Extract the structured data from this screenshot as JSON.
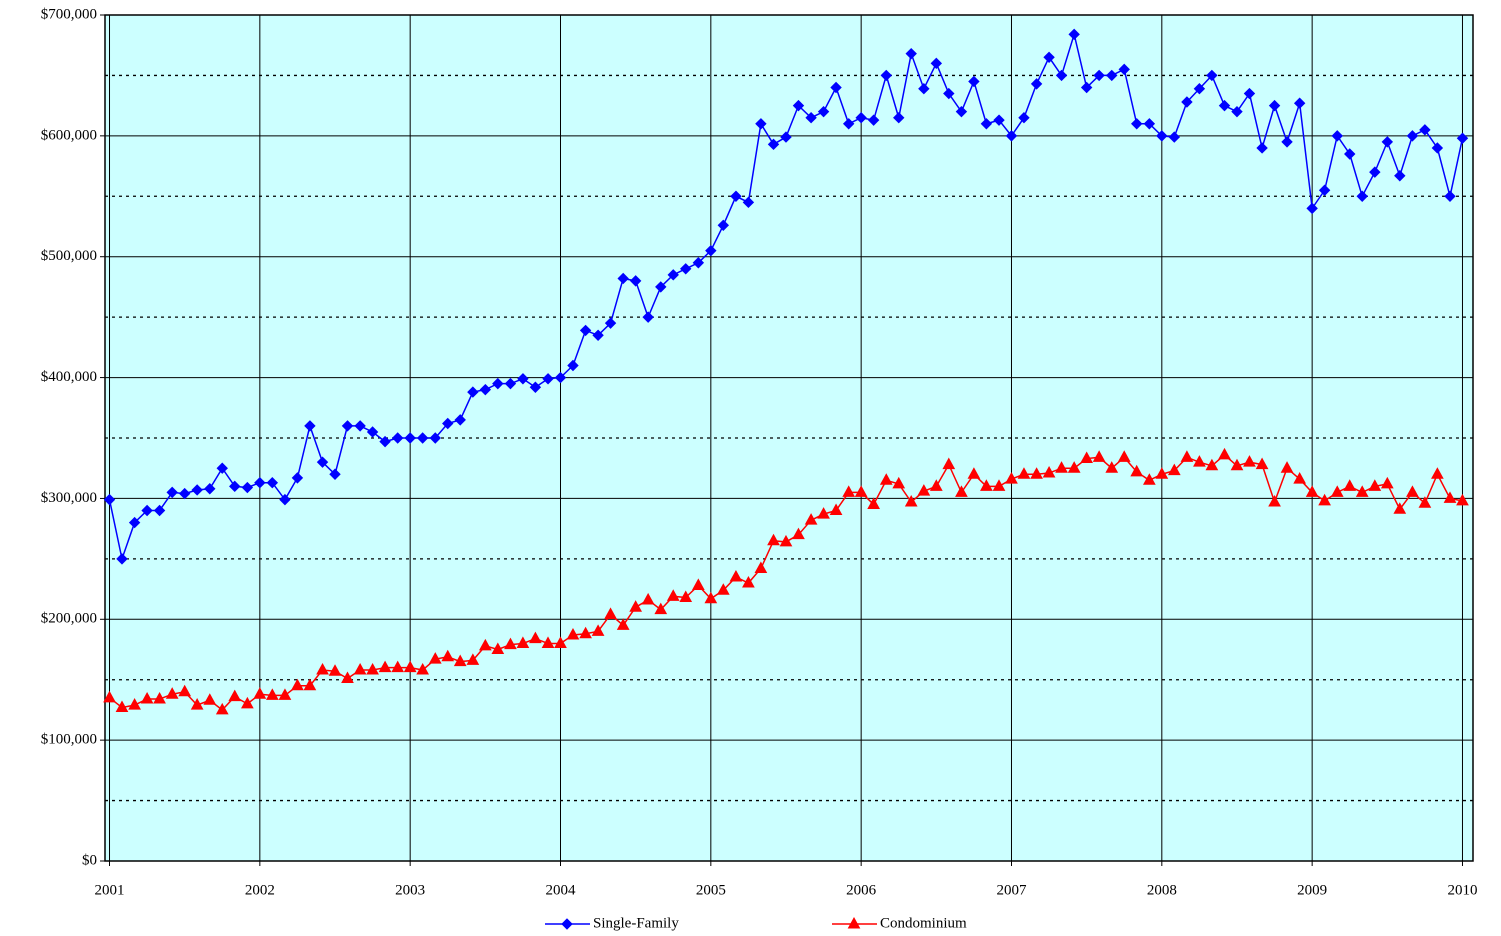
{
  "chart_data": {
    "type": "line",
    "x": [
      2001,
      2001.083,
      2001.167,
      2001.25,
      2001.333,
      2001.417,
      2001.5,
      2001.583,
      2001.667,
      2001.75,
      2001.833,
      2001.917,
      2002,
      2002.083,
      2002.167,
      2002.25,
      2002.333,
      2002.417,
      2002.5,
      2002.583,
      2002.667,
      2002.75,
      2002.833,
      2002.917,
      2003,
      2003.083,
      2003.167,
      2003.25,
      2003.333,
      2003.417,
      2003.5,
      2003.583,
      2003.667,
      2003.75,
      2003.833,
      2003.917,
      2004,
      2004.083,
      2004.167,
      2004.25,
      2004.333,
      2004.417,
      2004.5,
      2004.583,
      2004.667,
      2004.75,
      2004.833,
      2004.917,
      2005,
      2005.083,
      2005.167,
      2005.25,
      2005.333,
      2005.417,
      2005.5,
      2005.583,
      2005.667,
      2005.75,
      2005.833,
      2005.917,
      2006,
      2006.083,
      2006.167,
      2006.25,
      2006.333,
      2006.417,
      2006.5,
      2006.583,
      2006.667,
      2006.75,
      2006.833,
      2006.917,
      2007,
      2007.083,
      2007.167,
      2007.25,
      2007.333,
      2007.417,
      2007.5,
      2007.583,
      2007.667,
      2007.75,
      2007.833,
      2007.917,
      2008,
      2008.083,
      2008.167,
      2008.25,
      2008.333,
      2008.417,
      2008.5,
      2008.583,
      2008.667,
      2008.75,
      2008.833,
      2008.917,
      2009,
      2009.083,
      2009.167,
      2009.25,
      2009.333,
      2009.417,
      2009.5,
      2009.583,
      2009.667,
      2009.75,
      2009.833,
      2009.917,
      2010
    ],
    "series": [
      {
        "name": "Single-Family",
        "color": "#0000ff",
        "marker": "diamond",
        "values": [
          299000,
          250000,
          280000,
          290000,
          290000,
          305000,
          304000,
          307000,
          308000,
          325000,
          310000,
          309000,
          313000,
          313000,
          299000,
          317000,
          360000,
          330000,
          320000,
          360000,
          360000,
          355000,
          347000,
          350000,
          350000,
          350000,
          350000,
          362000,
          365000,
          388000,
          390000,
          395000,
          395000,
          399000,
          392000,
          399000,
          400000,
          410000,
          439000,
          435000,
          445000,
          482000,
          480000,
          450000,
          475000,
          485000,
          490000,
          495000,
          505000,
          526000,
          550000,
          545000,
          610000,
          593000,
          599000,
          625000,
          615000,
          620000,
          640000,
          610000,
          615000,
          613000,
          650000,
          615000,
          668000,
          639000,
          660000,
          635000,
          620000,
          645000,
          610000,
          613000,
          600000,
          615000,
          643000,
          665000,
          650000,
          684000,
          640000,
          650000,
          650000,
          655000,
          610000,
          610000,
          600000,
          599000,
          628000,
          639000,
          650000,
          625000,
          620000,
          635000,
          590000,
          625000,
          595000,
          627000,
          540000,
          555000,
          600000,
          585000,
          550000,
          570000,
          595000,
          567000,
          600000,
          605000,
          590000,
          550000,
          598000
        ]
      },
      {
        "name": "Condominium",
        "color": "#ff0000",
        "marker": "triangle",
        "values": [
          135000,
          127000,
          129000,
          134000,
          134000,
          138000,
          140000,
          129000,
          133000,
          125000,
          136000,
          130000,
          138000,
          137000,
          137000,
          145000,
          145000,
          158000,
          157000,
          151000,
          158000,
          158000,
          160000,
          160000,
          160000,
          158000,
          167000,
          169000,
          165000,
          166000,
          178000,
          175000,
          179000,
          180000,
          184000,
          180000,
          180000,
          187000,
          188000,
          190000,
          204000,
          195000,
          210000,
          216000,
          208000,
          219000,
          218000,
          228000,
          217000,
          224000,
          235000,
          230000,
          242000,
          265000,
          264000,
          270000,
          282000,
          287000,
          290000,
          305000,
          305000,
          295000,
          315000,
          312000,
          297000,
          306000,
          310000,
          328000,
          305000,
          320000,
          310000,
          310000,
          316000,
          320000,
          320000,
          321000,
          325000,
          325000,
          333000,
          334000,
          325000,
          334000,
          322000,
          315000,
          320000,
          323000,
          334000,
          330000,
          327000,
          336000,
          327000,
          330000,
          328000,
          297000,
          325000,
          316000,
          305000,
          298000,
          305000,
          310000,
          305000,
          310000,
          312000,
          291000,
          305000,
          296000,
          320000,
          300000,
          298000
        ]
      }
    ],
    "xlim": [
      2000.97,
      2010.07
    ],
    "xticks": [
      2001,
      2002,
      2003,
      2004,
      2005,
      2006,
      2007,
      2008,
      2009,
      2010
    ],
    "ylim": [
      0,
      700000
    ],
    "yticks": [
      {
        "value": 0,
        "label": "$0"
      },
      {
        "value": 100000,
        "label": "$100,000"
      },
      {
        "value": 200000,
        "label": "$200,000"
      },
      {
        "value": 300000,
        "label": "$300,000"
      },
      {
        "value": 400000,
        "label": "$400,000"
      },
      {
        "value": 500000,
        "label": "$500,000"
      },
      {
        "value": 600000,
        "label": "$600,000"
      },
      {
        "value": 700000,
        "label": "$700,000"
      }
    ],
    "minor_yticks": [
      50000,
      150000,
      250000,
      350000,
      450000,
      550000,
      650000
    ],
    "background": "#ccffff",
    "grid": true,
    "legend": "bottom"
  }
}
